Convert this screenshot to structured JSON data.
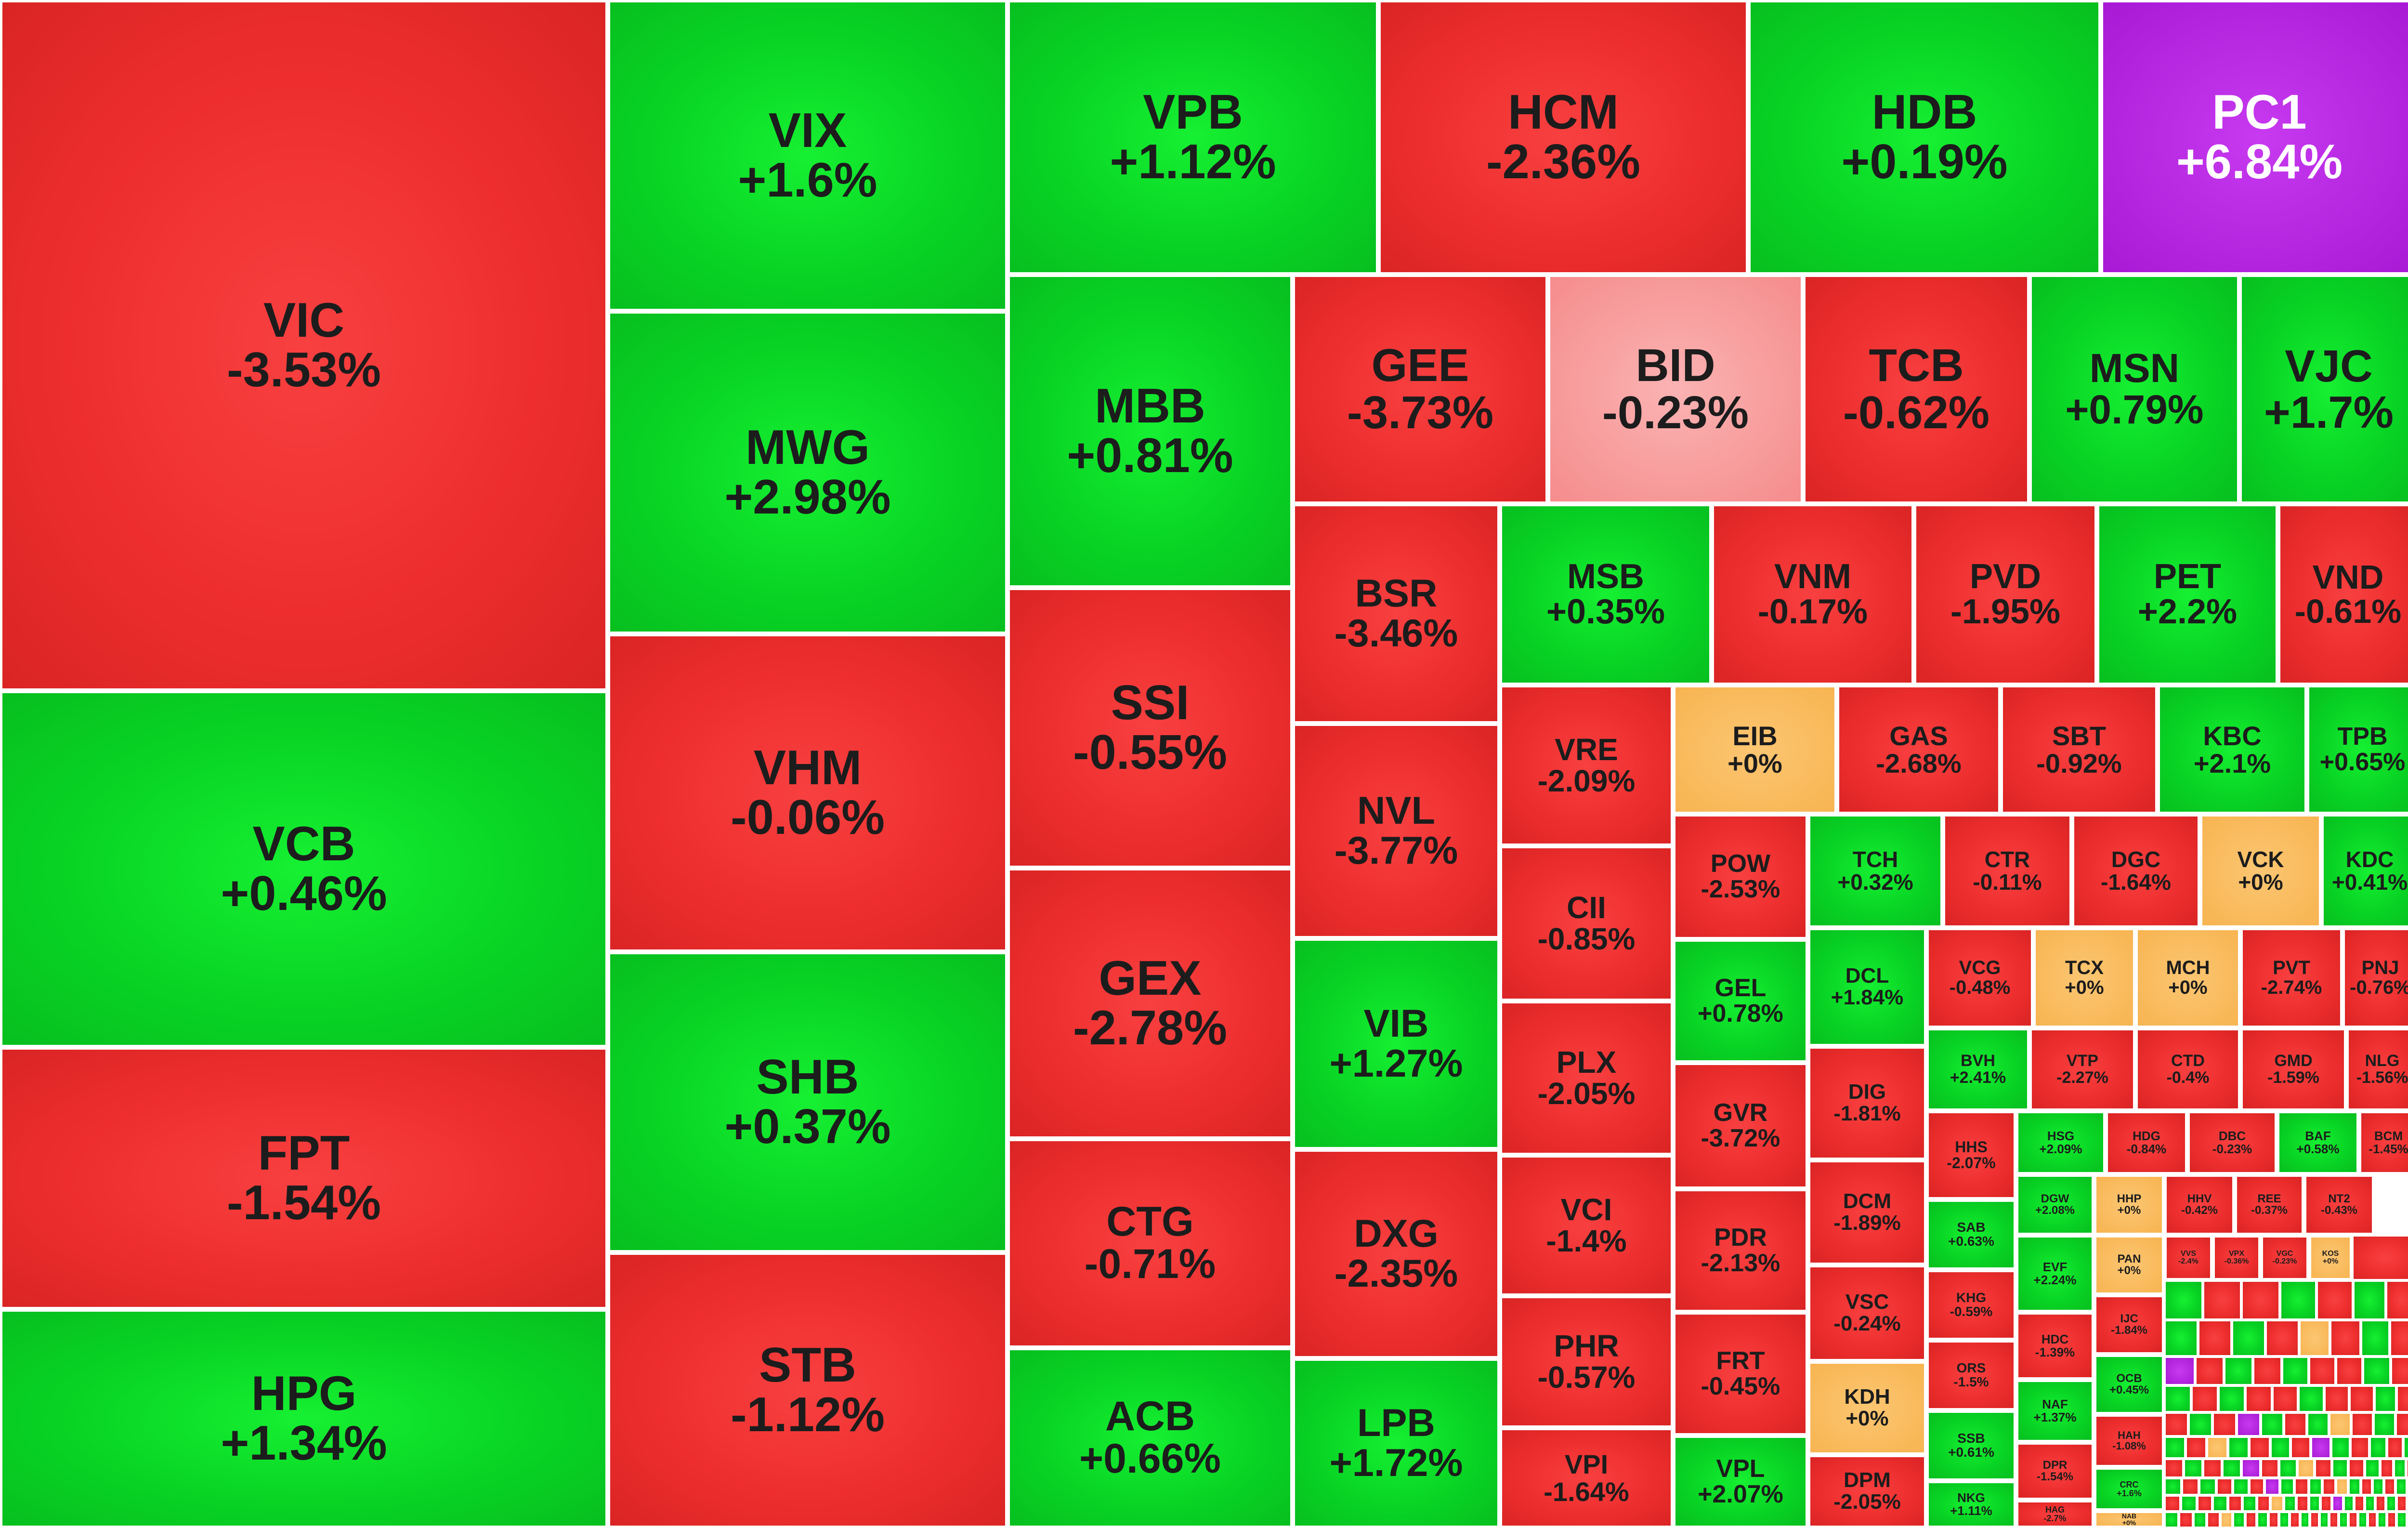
{
  "colors": {
    "up": "#08d424",
    "down": "#ee2e2e",
    "flat": "#f7b451",
    "light_down": "#f58c8c",
    "ceiling": "#a719d4"
  },
  "chart_data": {
    "type": "heatmap",
    "stocks": [
      {
        "ticker": "VIC",
        "change": "-3.53%",
        "status": "down"
      },
      {
        "ticker": "VCB",
        "change": "+0.46%",
        "status": "up"
      },
      {
        "ticker": "FPT",
        "change": "-1.54%",
        "status": "down"
      },
      {
        "ticker": "HPG",
        "change": "+1.34%",
        "status": "up"
      },
      {
        "ticker": "VIX",
        "change": "+1.6%",
        "status": "up"
      },
      {
        "ticker": "MWG",
        "change": "+2.98%",
        "status": "up"
      },
      {
        "ticker": "VHM",
        "change": "-0.06%",
        "status": "down"
      },
      {
        "ticker": "SHB",
        "change": "+0.37%",
        "status": "up"
      },
      {
        "ticker": "STB",
        "change": "-1.12%",
        "status": "down"
      },
      {
        "ticker": "VPB",
        "change": "+1.12%",
        "status": "up"
      },
      {
        "ticker": "HCM",
        "change": "-2.36%",
        "status": "down"
      },
      {
        "ticker": "HDB",
        "change": "+0.19%",
        "status": "up"
      },
      {
        "ticker": "PC1",
        "change": "+6.84%",
        "status": "ceiling"
      },
      {
        "ticker": "MBB",
        "change": "+0.81%",
        "status": "up"
      },
      {
        "ticker": "SSI",
        "change": "-0.55%",
        "status": "down"
      },
      {
        "ticker": "GEX",
        "change": "-2.78%",
        "status": "down"
      },
      {
        "ticker": "CTG",
        "change": "-0.71%",
        "status": "down"
      },
      {
        "ticker": "ACB",
        "change": "+0.66%",
        "status": "up"
      },
      {
        "ticker": "GEE",
        "change": "-3.73%",
        "status": "down"
      },
      {
        "ticker": "BID",
        "change": "-0.23%",
        "status": "light_down"
      },
      {
        "ticker": "TCB",
        "change": "-0.62%",
        "status": "down"
      },
      {
        "ticker": "MSN",
        "change": "+0.79%",
        "status": "up"
      },
      {
        "ticker": "VJC",
        "change": "+1.7%",
        "status": "up"
      },
      {
        "ticker": "BSR",
        "change": "-3.46%",
        "status": "down"
      },
      {
        "ticker": "NVL",
        "change": "-3.77%",
        "status": "down"
      },
      {
        "ticker": "VIB",
        "change": "+1.27%",
        "status": "up"
      },
      {
        "ticker": "DXG",
        "change": "-2.35%",
        "status": "down"
      },
      {
        "ticker": "LPB",
        "change": "+1.72%",
        "status": "up"
      },
      {
        "ticker": "MSB",
        "change": "+0.35%",
        "status": "up"
      },
      {
        "ticker": "VNM",
        "change": "-0.17%",
        "status": "down"
      },
      {
        "ticker": "PVD",
        "change": "-1.95%",
        "status": "down"
      },
      {
        "ticker": "PET",
        "change": "+2.2%",
        "status": "up"
      },
      {
        "ticker": "VND",
        "change": "-0.61%",
        "status": "down"
      },
      {
        "ticker": "VRE",
        "change": "-2.09%",
        "status": "down"
      },
      {
        "ticker": "CII",
        "change": "-0.85%",
        "status": "down"
      },
      {
        "ticker": "PLX",
        "change": "-2.05%",
        "status": "down"
      },
      {
        "ticker": "VCI",
        "change": "-1.4%",
        "status": "down"
      },
      {
        "ticker": "PHR",
        "change": "-0.57%",
        "status": "down"
      },
      {
        "ticker": "VPI",
        "change": "-1.64%",
        "status": "down"
      },
      {
        "ticker": "EIB",
        "change": "+0%",
        "status": "flat"
      },
      {
        "ticker": "GAS",
        "change": "-2.68%",
        "status": "down"
      },
      {
        "ticker": "SBT",
        "change": "-0.92%",
        "status": "down"
      },
      {
        "ticker": "KBC",
        "change": "+2.1%",
        "status": "up"
      },
      {
        "ticker": "TPB",
        "change": "+0.65%",
        "status": "up"
      },
      {
        "ticker": "POW",
        "change": "-2.53%",
        "status": "down"
      },
      {
        "ticker": "GEL",
        "change": "+0.78%",
        "status": "up"
      },
      {
        "ticker": "GVR",
        "change": "-3.72%",
        "status": "down"
      },
      {
        "ticker": "PDR",
        "change": "-2.13%",
        "status": "down"
      },
      {
        "ticker": "FRT",
        "change": "-0.45%",
        "status": "down"
      },
      {
        "ticker": "VPL",
        "change": "+2.07%",
        "status": "up"
      },
      {
        "ticker": "TCH",
        "change": "+0.32%",
        "status": "up"
      },
      {
        "ticker": "CTR",
        "change": "-0.11%",
        "status": "down"
      },
      {
        "ticker": "DGC",
        "change": "-1.64%",
        "status": "down"
      },
      {
        "ticker": "VCK",
        "change": "+0%",
        "status": "flat"
      },
      {
        "ticker": "KDC",
        "change": "+0.41%",
        "status": "up"
      },
      {
        "ticker": "DCL",
        "change": "+1.84%",
        "status": "up"
      },
      {
        "ticker": "DIG",
        "change": "-1.81%",
        "status": "down"
      },
      {
        "ticker": "DCM",
        "change": "-1.89%",
        "status": "down"
      },
      {
        "ticker": "VSC",
        "change": "-0.24%",
        "status": "down"
      },
      {
        "ticker": "KDH",
        "change": "+0%",
        "status": "flat"
      },
      {
        "ticker": "DPM",
        "change": "-2.05%",
        "status": "down"
      },
      {
        "ticker": "VCG",
        "change": "-0.48%",
        "status": "down"
      },
      {
        "ticker": "TCX",
        "change": "+0%",
        "status": "flat"
      },
      {
        "ticker": "MCH",
        "change": "+0%",
        "status": "flat"
      },
      {
        "ticker": "PVT",
        "change": "-2.74%",
        "status": "down"
      },
      {
        "ticker": "PNJ",
        "change": "-0.76%",
        "status": "down"
      },
      {
        "ticker": "BVH",
        "change": "+2.41%",
        "status": "up"
      },
      {
        "ticker": "VTP",
        "change": "-2.27%",
        "status": "down"
      },
      {
        "ticker": "CTD",
        "change": "-0.4%",
        "status": "down"
      },
      {
        "ticker": "GMD",
        "change": "-1.59%",
        "status": "down"
      },
      {
        "ticker": "NLG",
        "change": "-1.56%",
        "status": "down"
      },
      {
        "ticker": "HHS",
        "change": "-2.07%",
        "status": "down"
      },
      {
        "ticker": "HSG",
        "change": "+2.09%",
        "status": "up"
      },
      {
        "ticker": "HDG",
        "change": "-0.84%",
        "status": "down"
      },
      {
        "ticker": "DBC",
        "change": "-0.23%",
        "status": "down"
      },
      {
        "ticker": "BAF",
        "change": "+0.58%",
        "status": "up"
      },
      {
        "ticker": "BCM",
        "change": "-1.45%",
        "status": "down"
      },
      {
        "ticker": "DGW",
        "change": "+2.08%",
        "status": "up"
      },
      {
        "ticker": "HHP",
        "change": "+0%",
        "status": "flat"
      },
      {
        "ticker": "HHV",
        "change": "-0.42%",
        "status": "down"
      },
      {
        "ticker": "REE",
        "change": "-0.37%",
        "status": "down"
      },
      {
        "ticker": "NT2",
        "change": "-0.43%",
        "status": "down"
      },
      {
        "ticker": "SAB",
        "change": "+0.63%",
        "status": "up"
      },
      {
        "ticker": "EVF",
        "change": "+2.24%",
        "status": "up"
      },
      {
        "ticker": "PAN",
        "change": "+0%",
        "status": "flat"
      },
      {
        "ticker": "VVS",
        "change": "-2.4%",
        "status": "down"
      },
      {
        "ticker": "VPX",
        "change": "-0.36%",
        "status": "down"
      },
      {
        "ticker": "VGC",
        "change": "-0.23%",
        "status": "down"
      },
      {
        "ticker": "KOS",
        "change": "+0%",
        "status": "flat"
      },
      {
        "ticker": "KHG",
        "change": "-0.59%",
        "status": "down"
      },
      {
        "ticker": "HDC",
        "change": "-1.39%",
        "status": "down"
      },
      {
        "ticker": "IJC",
        "change": "-1.84%",
        "status": "down"
      },
      {
        "ticker": "ORS",
        "change": "-1.5%",
        "status": "down"
      },
      {
        "ticker": "OCB",
        "change": "+0.45%",
        "status": "up"
      },
      {
        "ticker": "NAF",
        "change": "+1.37%",
        "status": "up"
      },
      {
        "ticker": "HAH",
        "change": "-1.08%",
        "status": "down"
      },
      {
        "ticker": "SSB",
        "change": "+0.61%",
        "status": "up"
      },
      {
        "ticker": "DPR",
        "change": "-1.54%",
        "status": "down"
      },
      {
        "ticker": "CRC",
        "change": "+1.6%",
        "status": "up"
      },
      {
        "ticker": "NKG",
        "change": "+1.11%",
        "status": "up"
      },
      {
        "ticker": "HAG",
        "change": "-2.7%",
        "status": "down"
      },
      {
        "ticker": "NAB",
        "change": "+0%",
        "status": "flat"
      }
    ]
  }
}
